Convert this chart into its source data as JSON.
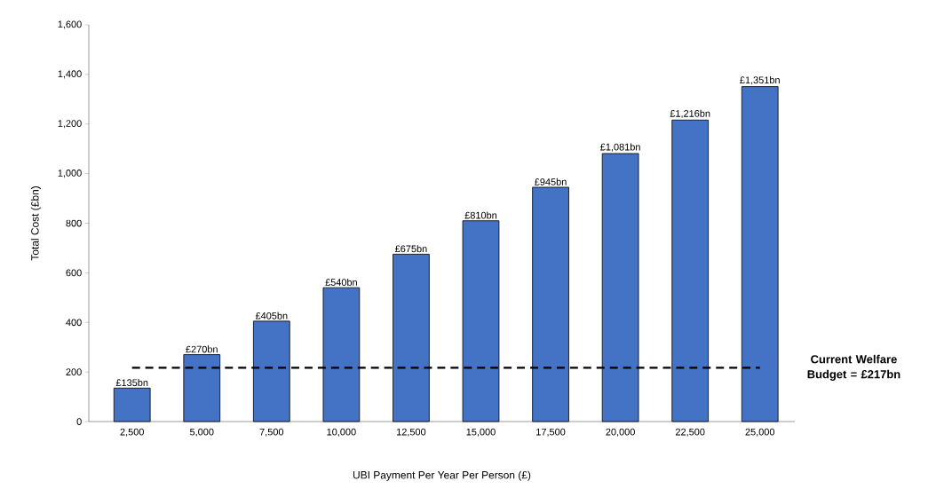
{
  "chart_data": {
    "type": "bar",
    "xlabel": "UBI Payment Per Year Per Person (£)",
    "ylabel": "Total Cost (£bn)",
    "categories": [
      "2,500",
      "5,000",
      "7,500",
      "10,000",
      "12,500",
      "15,000",
      "17,500",
      "20,000",
      "22,500",
      "25,000"
    ],
    "values": [
      135,
      270,
      405,
      540,
      675,
      810,
      945,
      1081,
      1216,
      1351
    ],
    "value_labels": [
      "£135bn",
      "£270bn",
      "£405bn",
      "£540bn",
      "£675bn",
      "£810bn",
      "£945bn",
      "£1,081bn",
      "£1,216bn",
      "£1,351bn"
    ],
    "color": "#4472c4",
    "ylim": [
      0,
      1600
    ],
    "yticks": [
      0,
      200,
      400,
      600,
      800,
      {
        "value": 1000,
        "label": "1,000"
      },
      {
        "value": 1200,
        "label": "1,200"
      },
      {
        "value": 1400,
        "label": "1,400"
      },
      {
        "value": 1600,
        "label": "1,600"
      }
    ],
    "ref_lines": [
      {
        "axis": "y",
        "value": 217,
        "label": "Current Welfare Budget = £217bn",
        "color": "#000000",
        "line_style": "dashed"
      }
    ],
    "grid": false
  }
}
